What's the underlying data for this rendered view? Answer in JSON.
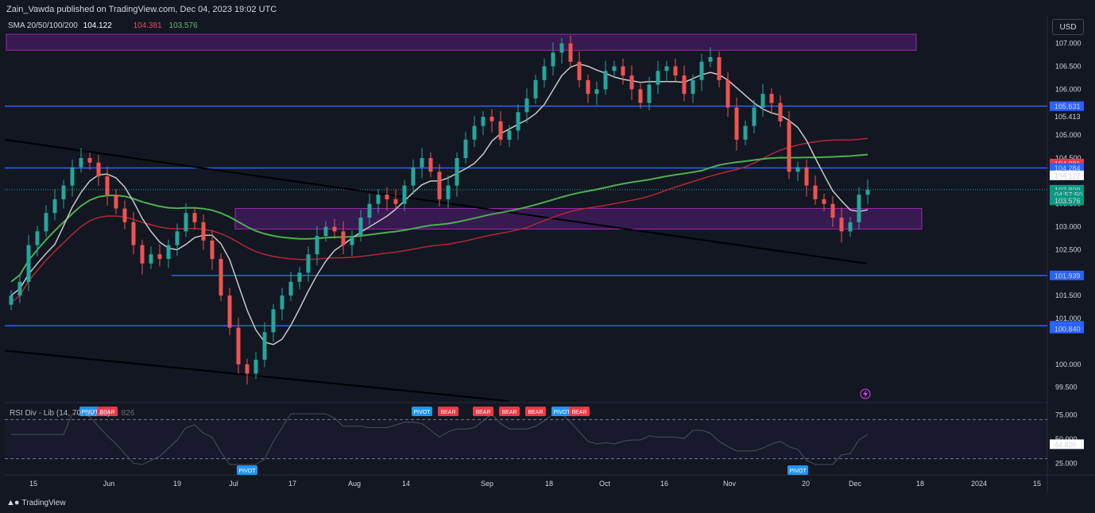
{
  "header": {
    "published": "Zain_Vawda published on TradingView.com, Dec 04, 2023 19:02 UTC",
    "currency_button": "USD",
    "brand": "TradingView"
  },
  "sma_legend": {
    "label": "SMA 20/50/100/200",
    "values": [
      "104.122",
      "104.381",
      "103.576"
    ]
  },
  "rsi_legend": {
    "label": "RSI Div - Lib",
    "params": "(14, 70, 30, 40)",
    "tail": "... 826"
  },
  "colors": {
    "bg": "#131722",
    "up": "#26a69a",
    "down": "#ef5350",
    "sma20": "#c8c8c8",
    "sma100": "#b22833",
    "sma200": "#4caf50",
    "zone": "#7b1fa2",
    "hline": "#2962ff",
    "bear": "#f23645",
    "pivot": "#2196f3"
  },
  "chart_data": {
    "type": "candlestick",
    "y_range": [
      99.2,
      107.6
    ],
    "y_ticks": [
      "107.000",
      "106.500",
      "106.000",
      "105.000",
      "104.500",
      "103.500",
      "103.000",
      "102.500",
      "101.500",
      "101.000",
      "100.000",
      "99.500"
    ],
    "price_labels": [
      {
        "text": "105.631",
        "kind": "blue"
      },
      {
        "text": "105.413",
        "kind": "plain"
      },
      {
        "text": "104.381",
        "kind": "red"
      },
      {
        "text": "104.284",
        "kind": "blue"
      },
      {
        "text": "104.122",
        "kind": "white"
      },
      {
        "text": "103.809",
        "kind": "green"
      },
      {
        "text": "04:57:50",
        "kind": "green"
      },
      {
        "text": "103.576",
        "kind": "green"
      },
      {
        "text": "101.939",
        "kind": "blue"
      },
      {
        "text": "100.841",
        "kind": "blue"
      },
      {
        "text": "100.840",
        "kind": "blue"
      }
    ],
    "horizontal_levels": [
      105.631,
      104.284,
      101.939,
      100.84
    ],
    "zones": [
      {
        "from": 106.85,
        "to": 107.2
      },
      {
        "from": 102.95,
        "to": 103.4
      }
    ],
    "x_ticks": [
      "15",
      "Jun",
      "19",
      "Jul",
      "17",
      "Aug",
      "14",
      "Sep",
      "18",
      "Oct",
      "16",
      "Nov",
      "20",
      "Dec",
      "18",
      "2024",
      "15"
    ],
    "closes": [
      101.5,
      101.8,
      102.6,
      102.9,
      103.3,
      103.6,
      103.9,
      104.3,
      104.5,
      104.4,
      104.1,
      103.7,
      103.4,
      103.1,
      102.6,
      102.2,
      102.4,
      102.3,
      102.6,
      102.9,
      103.3,
      103.1,
      102.7,
      102.3,
      101.5,
      100.8,
      100.0,
      99.8,
      100.1,
      100.7,
      101.2,
      101.5,
      101.8,
      102.0,
      102.4,
      102.8,
      103.0,
      102.9,
      102.6,
      102.8,
      103.2,
      103.5,
      103.7,
      103.6,
      103.5,
      103.9,
      104.3,
      104.5,
      104.2,
      103.6,
      103.9,
      104.5,
      104.9,
      105.2,
      105.4,
      105.3,
      104.9,
      105.1,
      105.5,
      105.8,
      106.2,
      106.5,
      106.8,
      107.0,
      106.6,
      106.2,
      105.9,
      106.0,
      106.4,
      106.5,
      106.3,
      106.0,
      105.7,
      106.1,
      106.4,
      106.5,
      106.3,
      105.9,
      106.2,
      106.6,
      106.7,
      106.2,
      105.6,
      104.9,
      105.2,
      105.6,
      105.9,
      105.7,
      105.3,
      104.2,
      104.3,
      103.9,
      103.6,
      103.5,
      103.2,
      102.9,
      103.1,
      103.7,
      103.809
    ],
    "rsi": {
      "y_ticks": [
        "75.000",
        "50.000",
        "25.000"
      ],
      "current": "44.826",
      "levels": [
        70,
        30
      ],
      "markers": [
        {
          "text": "PIVOT",
          "kind": "pivot",
          "pos": "top",
          "i": 9
        },
        {
          "text": "BEAR",
          "kind": "bear",
          "pos": "top",
          "i": 11
        },
        {
          "text": "PIVOT",
          "kind": "pivot",
          "pos": "bottom",
          "i": 27
        },
        {
          "text": "PIVOT",
          "kind": "pivot",
          "pos": "top",
          "i": 47
        },
        {
          "text": "BEAR",
          "kind": "bear",
          "pos": "top",
          "i": 50
        },
        {
          "text": "BEAR",
          "kind": "bear",
          "pos": "top",
          "i": 54
        },
        {
          "text": "BEAR",
          "kind": "bear",
          "pos": "top",
          "i": 57
        },
        {
          "text": "BEAR",
          "kind": "bear",
          "pos": "top",
          "i": 60
        },
        {
          "text": "PIVOT",
          "kind": "pivot",
          "pos": "top",
          "i": 63
        },
        {
          "text": "BEAR",
          "kind": "bear",
          "pos": "top",
          "i": 65
        },
        {
          "text": "PIVOT",
          "kind": "pivot",
          "pos": "bottom",
          "i": 90
        }
      ]
    }
  }
}
